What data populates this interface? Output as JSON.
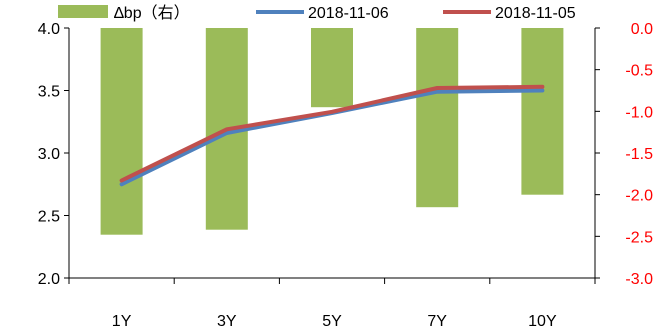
{
  "chart_data": {
    "type": "bar",
    "categories": [
      "1Y",
      "3Y",
      "5Y",
      "7Y",
      "10Y"
    ],
    "left_axis": {
      "ylim": [
        2.0,
        4.0
      ],
      "ticks": [
        "4.0",
        "3.5",
        "3.0",
        "2.5",
        "2.0"
      ]
    },
    "right_axis": {
      "ylim": [
        -3.0,
        0.0
      ],
      "ticks": [
        "0.0",
        "-0.5",
        "-1.0",
        "-1.5",
        "-2.0",
        "-2.5",
        "-3.0"
      ],
      "color": "#ff0000"
    },
    "series": [
      {
        "name": "∆bp（右）",
        "type": "bar",
        "axis": "right",
        "color": "#9bbb59",
        "values": [
          -2.48,
          -2.42,
          -0.95,
          -2.15,
          -2.0
        ]
      },
      {
        "name": "2018-11-06",
        "type": "line",
        "axis": "left",
        "color": "#4f81bd",
        "values": [
          2.75,
          3.16,
          3.32,
          3.49,
          3.5
        ]
      },
      {
        "name": "2018-11-05",
        "type": "line",
        "axis": "left",
        "color": "#c0504d",
        "values": [
          2.78,
          3.19,
          3.33,
          3.52,
          3.53
        ]
      }
    ],
    "legend_position": "top",
    "grid": false
  }
}
